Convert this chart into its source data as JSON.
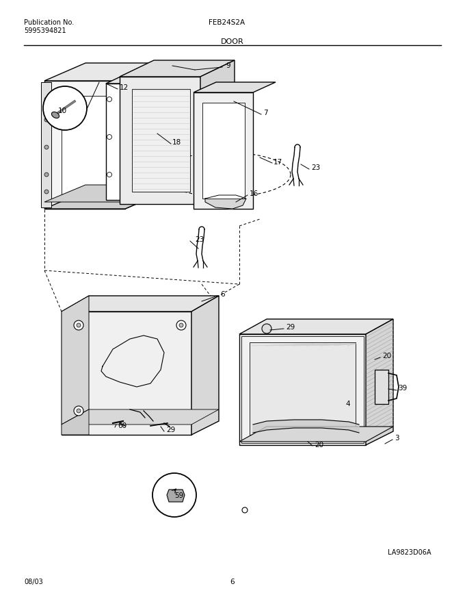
{
  "title_left": "Publication No.",
  "pub_number": "5995394821",
  "title_center": "FEB24S2A",
  "section": "DOOR",
  "diagram_id": "LA9823D06A",
  "date": "08/03",
  "page": "6",
  "bg": "#ffffff",
  "lc": "#000000",
  "gray_light": "#d8d8d8",
  "gray_med": "#bbbbbb",
  "gray_dark": "#888888"
}
